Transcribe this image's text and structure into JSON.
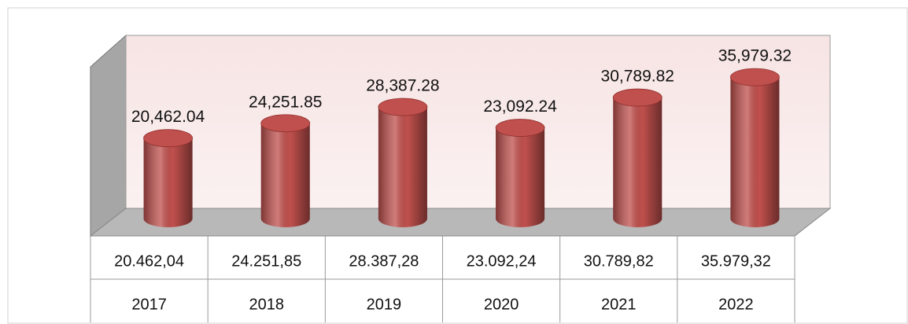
{
  "chart_data": {
    "type": "bar",
    "categories": [
      "2017",
      "2018",
      "2019",
      "2020",
      "2021",
      "2022"
    ],
    "values": [
      20462.04,
      24251.85,
      28387.28,
      23092.24,
      30789.82,
      35979.32
    ],
    "value_labels": [
      "20,462.04",
      "24,251.85",
      "28,387.28",
      "23,092.24",
      "30,789.82",
      "35,979.32"
    ],
    "data_table": [
      "20.462,04",
      "24.251,85",
      "28.387,28",
      "23.092,24",
      "30.789,82",
      "35.979,32"
    ],
    "color": "#c0504d",
    "ylim": [
      0,
      45000
    ]
  }
}
